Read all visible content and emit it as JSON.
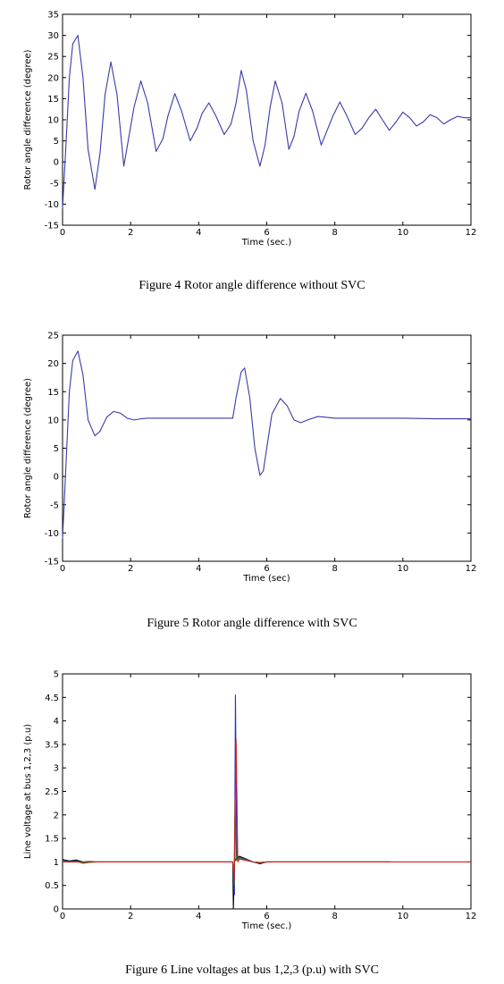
{
  "chart_data": [
    {
      "type": "line",
      "xlabel": "Time (sec.)",
      "ylabel": "Rotor angle difference (degree)",
      "caption": "Figure 4 Rotor angle difference without SVC",
      "xlim": [
        0,
        12
      ],
      "ylim": [
        -15,
        35
      ],
      "xticks": [
        0,
        2,
        4,
        6,
        8,
        10,
        12
      ],
      "yticks": [
        -15,
        -10,
        -5,
        0,
        5,
        10,
        15,
        20,
        25,
        30,
        35
      ],
      "grid": false,
      "series": [
        {
          "color": "#3a3aa8",
          "x": [
            0,
            0.1,
            0.2,
            0.3,
            0.45,
            0.6,
            0.75,
            0.95,
            1.1,
            1.25,
            1.42,
            1.6,
            1.8,
            1.95,
            2.1,
            2.3,
            2.5,
            2.75,
            2.95,
            3.1,
            3.3,
            3.5,
            3.75,
            3.95,
            4.1,
            4.3,
            4.5,
            4.75,
            4.95,
            5.1,
            5.25,
            5.4,
            5.6,
            5.8,
            5.95,
            6.1,
            6.25,
            6.45,
            6.65,
            6.8,
            6.95,
            7.15,
            7.35,
            7.6,
            7.8,
            7.95,
            8.15,
            8.35,
            8.6,
            8.8,
            9.0,
            9.2,
            9.4,
            9.6,
            9.8,
            10.0,
            10.2,
            10.4,
            10.6,
            10.8,
            11.0,
            11.2,
            11.4,
            11.6,
            11.8,
            12.0
          ],
          "y": [
            -11,
            4,
            20,
            28,
            30,
            20,
            3,
            -6.5,
            2,
            16,
            23.7,
            16,
            -1,
            6,
            13,
            19.2,
            14,
            2.5,
            5.5,
            11,
            16.2,
            12,
            5,
            8,
            11.5,
            14,
            11,
            6.5,
            9,
            14,
            21.7,
            17,
            5,
            -1,
            4,
            13,
            19.2,
            14,
            3,
            6,
            12,
            16.3,
            12,
            4,
            8,
            11,
            14.2,
            11,
            6.5,
            8,
            10.5,
            12.5,
            10,
            7.5,
            9.5,
            11.8,
            10.5,
            8.5,
            9.5,
            11.2,
            10.5,
            9,
            10,
            10.8,
            10.5,
            10.5
          ]
        }
      ]
    },
    {
      "type": "line",
      "xlabel": "Time (sec)",
      "ylabel": "Rotor angle difference (degree)",
      "caption": "Figure 5 Rotor angle difference with SVC",
      "xlim": [
        0,
        12
      ],
      "ylim": [
        -15,
        25
      ],
      "xticks": [
        0,
        2,
        4,
        6,
        8,
        10,
        12
      ],
      "yticks": [
        -15,
        -10,
        -5,
        0,
        5,
        10,
        15,
        20,
        25
      ],
      "grid": false,
      "series": [
        {
          "color": "#3a3aa8",
          "x": [
            0,
            0.1,
            0.2,
            0.3,
            0.45,
            0.6,
            0.75,
            0.95,
            1.1,
            1.3,
            1.5,
            1.7,
            1.9,
            2.1,
            2.3,
            2.5,
            3.0,
            4.0,
            5.0,
            5.1,
            5.25,
            5.35,
            5.5,
            5.65,
            5.8,
            5.9,
            6.0,
            6.15,
            6.4,
            6.6,
            6.8,
            7.0,
            7.2,
            7.5,
            7.7,
            8.0,
            9.0,
            10.0,
            11.0,
            12.0
          ],
          "y": [
            -11,
            2,
            15,
            20.5,
            22.2,
            18,
            10,
            7.2,
            8,
            10.5,
            11.5,
            11.2,
            10.3,
            10.0,
            10.2,
            10.3,
            10.3,
            10.3,
            10.3,
            14,
            18.5,
            19.2,
            14,
            5,
            0.2,
            1,
            5,
            11,
            13.8,
            12.5,
            10,
            9.5,
            10,
            10.6,
            10.5,
            10.3,
            10.3,
            10.3,
            10.2,
            10.2
          ]
        }
      ]
    },
    {
      "type": "line",
      "xlabel": "Time (sec.)",
      "ylabel": "Line voltage at bus 1,2,3 (p.u)",
      "caption": "Figure 6 Line voltages at bus 1,2,3 (p.u) with SVC",
      "xlim": [
        0,
        12
      ],
      "ylim": [
        0,
        5
      ],
      "xticks": [
        0,
        2,
        4,
        6,
        8,
        10,
        12
      ],
      "yticks": [
        0,
        0.5,
        1,
        1.5,
        2,
        2.5,
        3,
        3.5,
        4,
        4.5,
        5
      ],
      "grid": false,
      "series": [
        {
          "color": "#000000",
          "x": [
            0,
            0.2,
            0.4,
            0.6,
            0.8,
            1.0,
            2.0,
            4.0,
            5.0,
            5.02,
            5.05,
            5.1,
            5.2,
            5.4,
            5.6,
            5.8,
            6.0,
            6.2,
            7.0,
            9.6
          ],
          "y": [
            1.05,
            1.02,
            1.04,
            1.0,
            1.01,
            1.0,
            1.0,
            1.0,
            1.0,
            0.0,
            1.0,
            1.08,
            1.12,
            1.06,
            1.0,
            0.96,
            1.0,
            1.0,
            1.0,
            1.0
          ]
        },
        {
          "color": "#2f2fbf",
          "x": [
            0,
            0.2,
            0.4,
            0.6,
            0.8,
            1.0,
            2.0,
            4.0,
            5.0,
            5.05,
            5.08,
            5.12,
            5.2,
            5.4,
            5.6,
            5.8,
            6.0,
            7.0,
            9.6
          ],
          "y": [
            1.03,
            1.01,
            1.02,
            0.98,
            1.0,
            1.0,
            1.0,
            1.0,
            1.0,
            0.3,
            4.55,
            1.05,
            1.1,
            1.05,
            1.0,
            0.98,
            1.0,
            1.0,
            1.0
          ]
        },
        {
          "color": "#1c8a1c",
          "x": [
            0,
            0.2,
            0.4,
            0.6,
            0.8,
            1.0,
            2.0,
            4.0,
            5.0,
            5.04,
            5.07,
            5.1,
            5.2,
            5.4,
            5.6,
            5.8,
            6.0,
            7.0,
            9.6
          ],
          "y": [
            1.02,
            1.0,
            1.01,
            0.97,
            0.99,
            1.0,
            1.0,
            1.0,
            1.0,
            0.5,
            2.3,
            1.03,
            1.08,
            1.04,
            1.0,
            0.98,
            1.0,
            1.0,
            1.0
          ]
        },
        {
          "color": "#d22020",
          "x": [
            0,
            0.2,
            0.4,
            0.6,
            0.8,
            1.0,
            2.0,
            4.0,
            5.0,
            5.04,
            5.1,
            5.15,
            5.2,
            5.4,
            5.6,
            5.8,
            6.0,
            7.0,
            9.6,
            12.0
          ],
          "y": [
            1.0,
            1.0,
            1.0,
            1.0,
            1.0,
            1.0,
            1.0,
            1.0,
            1.0,
            0.6,
            3.6,
            1.0,
            1.06,
            1.03,
            1.0,
            0.99,
            1.0,
            1.0,
            1.0,
            1.0
          ]
        }
      ]
    }
  ]
}
